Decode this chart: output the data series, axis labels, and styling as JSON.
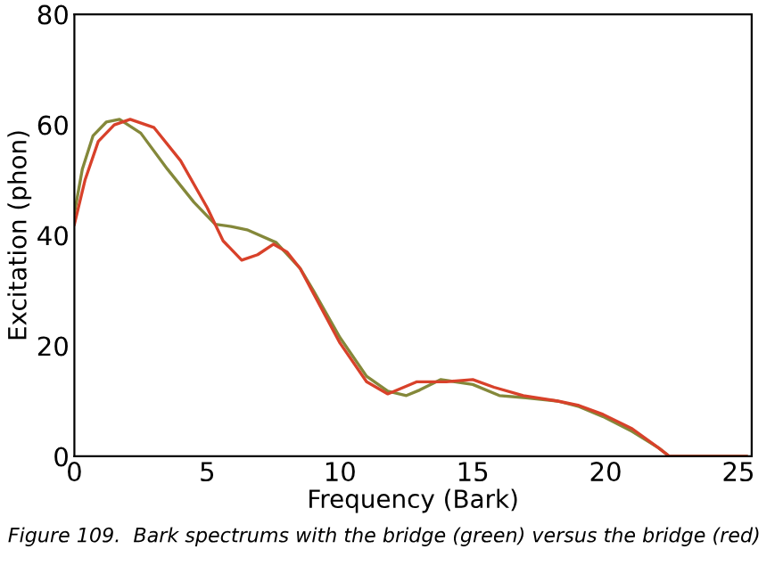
{
  "chart_data": {
    "type": "line",
    "xlabel": "Frequency (Bark)",
    "ylabel": "Excitation (phon)",
    "xlim": [
      0,
      25.5
    ],
    "ylim": [
      0,
      80
    ],
    "xticks": [
      0,
      5,
      10,
      15,
      20,
      25
    ],
    "yticks": [
      0,
      20,
      40,
      60,
      80
    ],
    "grid": false,
    "legend": false,
    "series": [
      {
        "color": "#84883a",
        "x": [
          0,
          0.3,
          0.7,
          1.2,
          1.7,
          2.5,
          3.5,
          4.5,
          5.3,
          5.9,
          6.5,
          7.6,
          8.5,
          9,
          10,
          11,
          11.8,
          12.5,
          13,
          13.8,
          15,
          16,
          17,
          18.2,
          19,
          19.9,
          21,
          22,
          22.4,
          25.3
        ],
        "values": [
          44,
          52,
          58,
          60.5,
          61,
          58.5,
          52,
          46,
          42,
          41.6,
          41,
          38.7,
          34,
          30,
          21.5,
          14.5,
          11.8,
          11,
          12,
          13.9,
          13,
          11,
          10.6,
          10,
          9,
          7.2,
          4.5,
          1.5,
          0,
          0
        ]
      },
      {
        "color": "#d8412a",
        "x": [
          0,
          0.4,
          0.9,
          1.5,
          2.1,
          3,
          4,
          5,
          5.6,
          6.3,
          6.9,
          7.5,
          8,
          8.5,
          9,
          10,
          11,
          11.8,
          12.9,
          14,
          15,
          15.8,
          16.9,
          18.2,
          19,
          19.9,
          21,
          22,
          22.4,
          25.3
        ],
        "values": [
          42,
          50,
          57,
          60,
          61,
          59.5,
          53.5,
          45,
          39,
          35.5,
          36.5,
          38.4,
          37,
          34,
          29.5,
          20.5,
          13.5,
          11.3,
          13.5,
          13.5,
          13.9,
          12.5,
          11,
          10,
          9.2,
          7.6,
          5,
          1.5,
          0,
          0
        ]
      }
    ],
    "annotations": [
      "Figure 109.  Bark spectrums with the bridge (green) versus the bridge (red)"
    ]
  }
}
